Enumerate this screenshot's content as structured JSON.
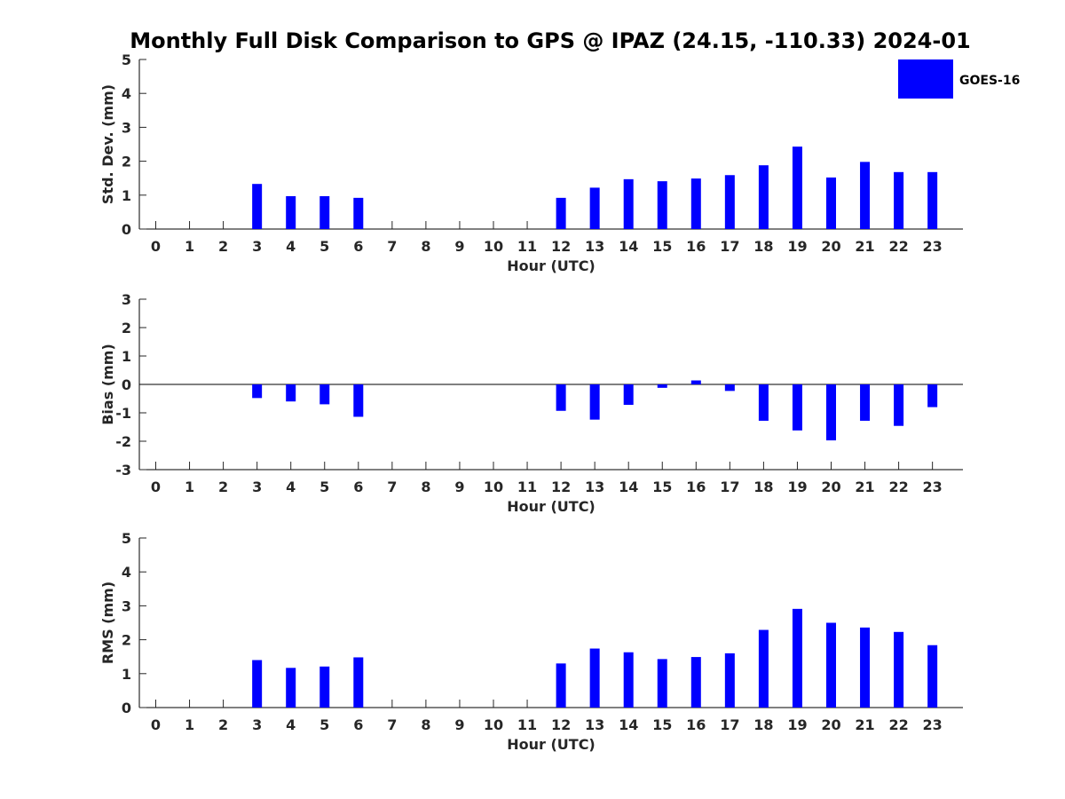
{
  "chart_data": {
    "title": "Monthly Full Disk Comparison to GPS @ IPAZ (24.15, -110.33) 2024-01",
    "legend": {
      "label": "GOES-16",
      "color": "#0000ff",
      "position": "top-right"
    },
    "panels": [
      {
        "type": "bar",
        "ylabel": "Std. Dev. (mm)",
        "xlabel": "Hour (UTC)",
        "ylim": [
          0,
          5
        ],
        "yticks": [
          0,
          1,
          2,
          3,
          4,
          5
        ],
        "categories": [
          "0",
          "1",
          "2",
          "3",
          "4",
          "5",
          "6",
          "7",
          "8",
          "9",
          "10",
          "11",
          "12",
          "13",
          "14",
          "15",
          "16",
          "17",
          "18",
          "19",
          "20",
          "21",
          "22",
          "23"
        ],
        "series": [
          {
            "name": "GOES-16",
            "color": "#0000ff",
            "values": [
              null,
              null,
              null,
              1.33,
              0.97,
              0.97,
              0.92,
              null,
              null,
              null,
              null,
              null,
              0.92,
              1.22,
              1.47,
              1.41,
              1.49,
              1.59,
              1.88,
              2.43,
              1.52,
              1.98,
              1.68,
              1.68
            ]
          }
        ]
      },
      {
        "type": "bar",
        "ylabel": "Bias (mm)",
        "xlabel": "Hour (UTC)",
        "ylim": [
          -3,
          3
        ],
        "yticks": [
          -3,
          -2,
          -1,
          0,
          1,
          2,
          3
        ],
        "zero_line": true,
        "categories": [
          "0",
          "1",
          "2",
          "3",
          "4",
          "5",
          "6",
          "7",
          "8",
          "9",
          "10",
          "11",
          "12",
          "13",
          "14",
          "15",
          "16",
          "17",
          "18",
          "19",
          "20",
          "21",
          "22",
          "23"
        ],
        "series": [
          {
            "name": "GOES-16",
            "color": "#0000ff",
            "values": [
              null,
              null,
              null,
              -0.48,
              -0.6,
              -0.7,
              -1.14,
              null,
              null,
              null,
              null,
              null,
              -0.93,
              -1.24,
              -0.72,
              -0.12,
              0.14,
              -0.23,
              -1.28,
              -1.62,
              -1.97,
              -1.28,
              -1.46,
              -0.8
            ]
          }
        ]
      },
      {
        "type": "bar",
        "ylabel": "RMS (mm)",
        "xlabel": "Hour (UTC)",
        "ylim": [
          0,
          5
        ],
        "yticks": [
          0,
          1,
          2,
          3,
          4,
          5
        ],
        "categories": [
          "0",
          "1",
          "2",
          "3",
          "4",
          "5",
          "6",
          "7",
          "8",
          "9",
          "10",
          "11",
          "12",
          "13",
          "14",
          "15",
          "16",
          "17",
          "18",
          "19",
          "20",
          "21",
          "22",
          "23"
        ],
        "series": [
          {
            "name": "GOES-16",
            "color": "#0000ff",
            "values": [
              null,
              null,
              null,
              1.4,
              1.17,
              1.21,
              1.48,
              null,
              null,
              null,
              null,
              null,
              1.3,
              1.74,
              1.63,
              1.43,
              1.49,
              1.6,
              2.29,
              2.91,
              2.5,
              2.36,
              2.23,
              1.84
            ]
          }
        ]
      }
    ]
  }
}
